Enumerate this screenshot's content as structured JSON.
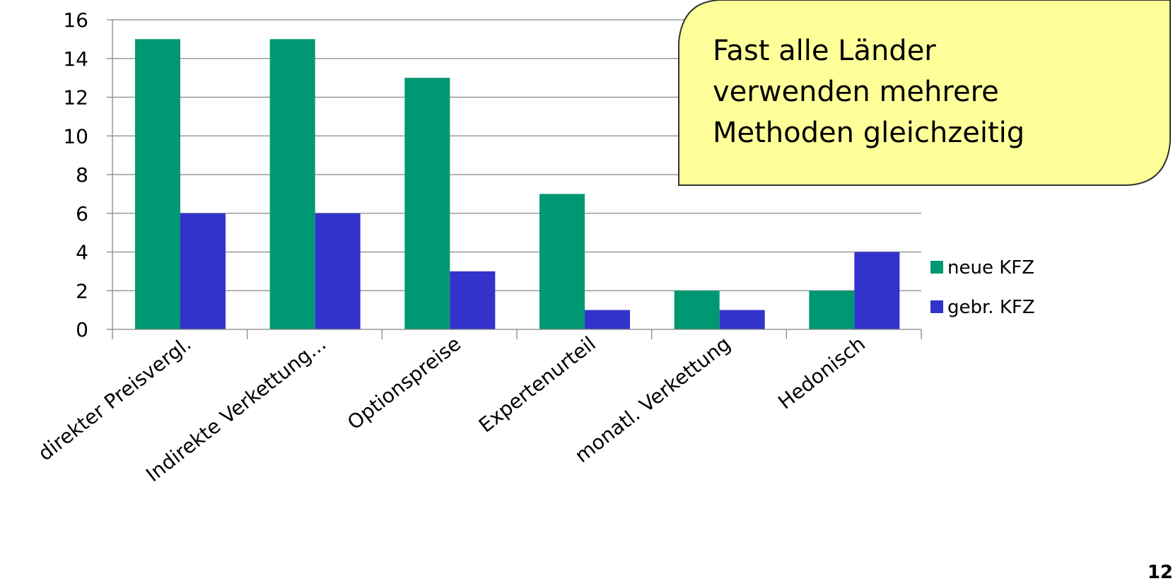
{
  "chart_data": {
    "type": "bar",
    "categories": [
      "direkter Preisvergl.",
      "Indirekte Verkettung...",
      "Optionspreise",
      "Expertenurteil",
      "monatl. Verkettung",
      "Hedonisch"
    ],
    "series": [
      {
        "name": "neue KFZ",
        "values": [
          15,
          15,
          13,
          7,
          2,
          2
        ],
        "color": "#009872"
      },
      {
        "name": "gebr. KFZ",
        "values": [
          6,
          6,
          3,
          1,
          1,
          4
        ],
        "color": "#3333CC"
      }
    ],
    "yticks": [
      "0",
      "2",
      "4",
      "6",
      "8",
      "10",
      "12",
      "14",
      "16"
    ],
    "ylim": [
      0,
      16
    ],
    "grid": true,
    "legend_position": "right"
  },
  "callout": {
    "lines": [
      "Fast alle Länder",
      "verwenden mehrere",
      "Methoden gleichzeitig"
    ]
  },
  "page_number": "12"
}
